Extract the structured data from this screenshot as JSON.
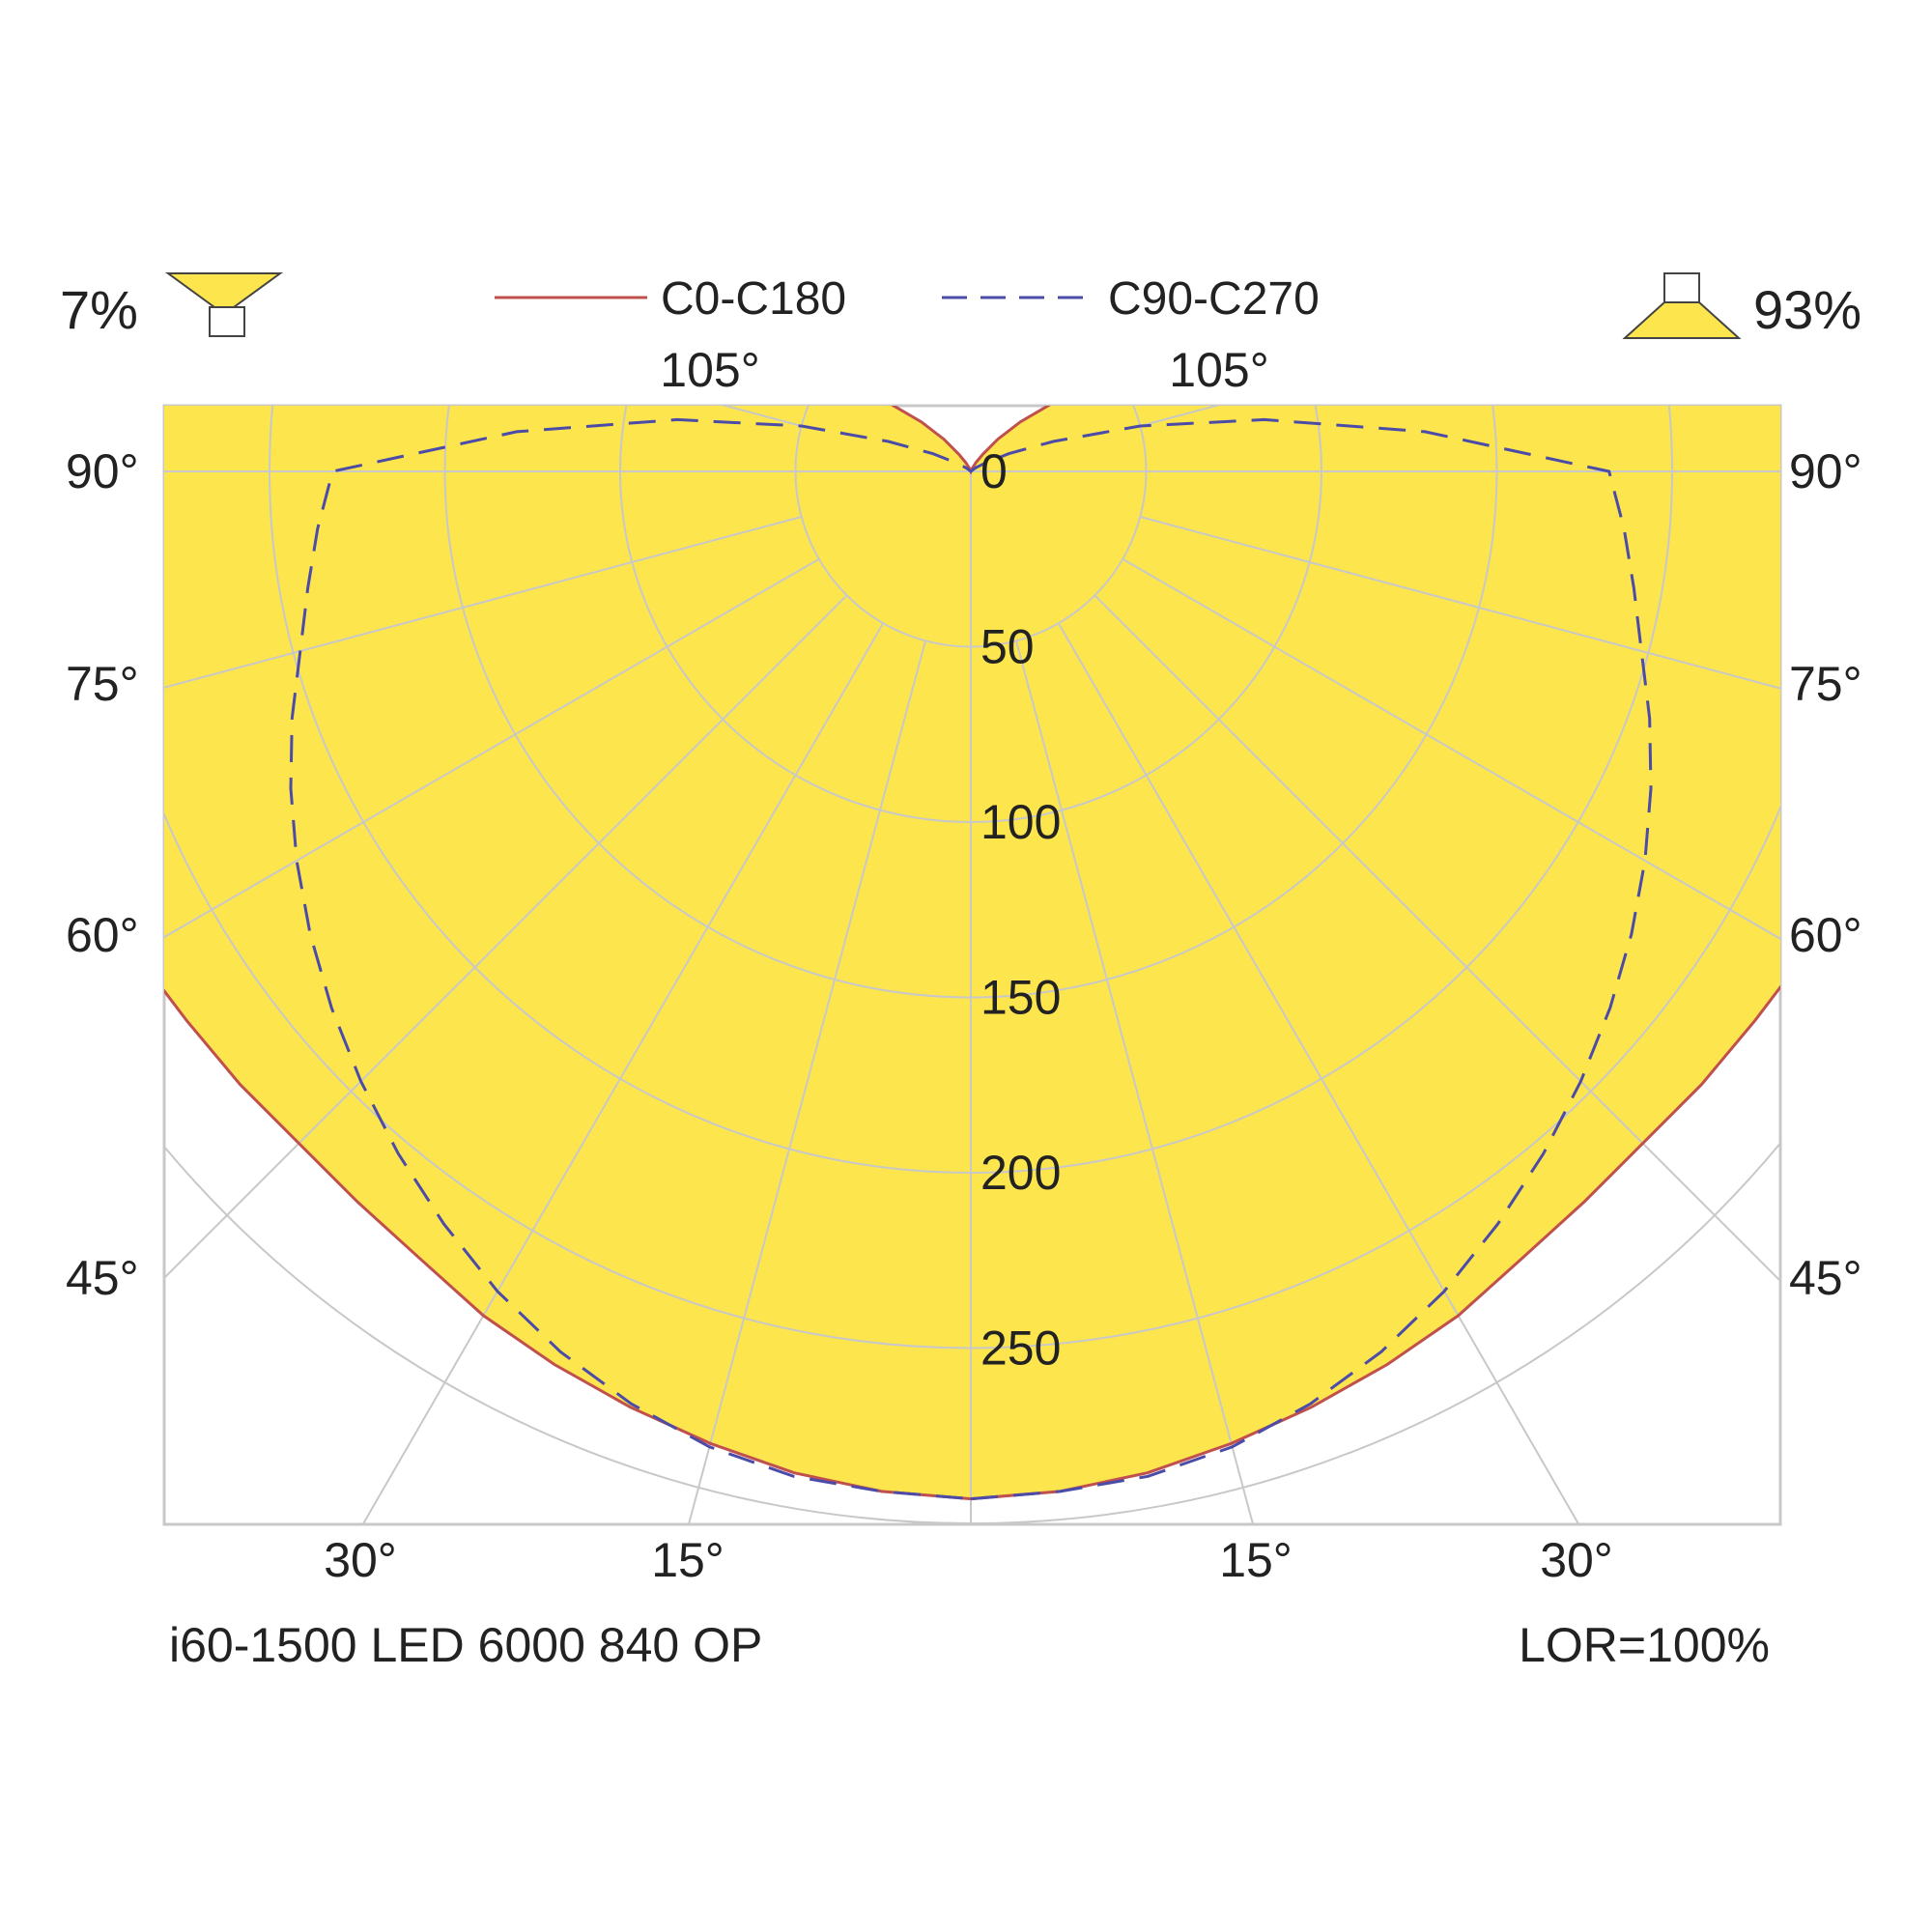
{
  "header": {
    "up_percent": "7%",
    "down_percent": "93%",
    "legend": [
      {
        "name": "C0-C180",
        "color": "#c0504d",
        "style": "solid"
      },
      {
        "name": "C90-C270",
        "color": "#4b4ba8",
        "style": "dashed"
      }
    ]
  },
  "footer": {
    "product": "i60-1500 LED 6000 840 OP",
    "lor": "LOR=100%"
  },
  "colors": {
    "fill": "#fde54e",
    "grid": "#c8c8c8",
    "frame": "#c8c8c8"
  },
  "chart_data": {
    "type": "polar",
    "unit_hint": "cd/klm",
    "radial_ticks": [
      0,
      50,
      100,
      150,
      200,
      250
    ],
    "radial_tick_labels": [
      "0",
      "50",
      "100",
      "150",
      "200",
      "250"
    ],
    "rmax_gridline": 300,
    "angle_labels": {
      "top": [
        "105°",
        "105°"
      ],
      "left": [
        "90°",
        "75°",
        "60°",
        "45°"
      ],
      "right": [
        "90°",
        "75°",
        "60°",
        "45°"
      ],
      "bottom": [
        "30°",
        "15°",
        "15°",
        "30°"
      ]
    },
    "series": [
      {
        "name": "C0-C180",
        "style": "solid",
        "filled": true,
        "gamma": [
          0,
          5,
          10,
          15,
          20,
          25,
          30,
          35,
          40,
          45,
          50,
          55,
          60,
          65,
          70,
          75,
          80,
          85,
          90,
          95,
          100,
          105,
          110,
          115,
          120,
          125,
          130,
          135,
          140,
          145,
          150,
          155,
          160,
          165,
          170,
          175,
          180
        ],
        "intensity": [
          293,
          292,
          290,
          287,
          284,
          281,
          278,
          274,
          272,
          271,
          272,
          273,
          275,
          275,
          274,
          272,
          272,
          271,
          271,
          271,
          244,
          248,
          186,
          125,
          80,
          45,
          30,
          20,
          12,
          6,
          3,
          1,
          0,
          0,
          0,
          0,
          0
        ]
      },
      {
        "name": "C90-C270",
        "style": "dashed",
        "filled": false,
        "gamma": [
          0,
          5,
          10,
          15,
          20,
          25,
          30,
          35,
          40,
          45,
          50,
          55,
          60,
          65,
          70,
          75,
          80,
          85,
          90,
          95,
          100,
          105,
          110,
          115,
          120,
          125,
          130,
          135,
          140,
          145,
          150,
          155,
          160,
          165,
          170,
          175,
          180
        ],
        "intensity": [
          293,
          292,
          291,
          288,
          283,
          277,
          270,
          262,
          254,
          246,
          238,
          230,
          222,
          214,
          206,
          198,
          192,
          187,
          182,
          130,
          85,
          50,
          25,
          12,
          5,
          2,
          1,
          0,
          0,
          0,
          0,
          0,
          0,
          0,
          0,
          0,
          0
        ]
      }
    ]
  }
}
